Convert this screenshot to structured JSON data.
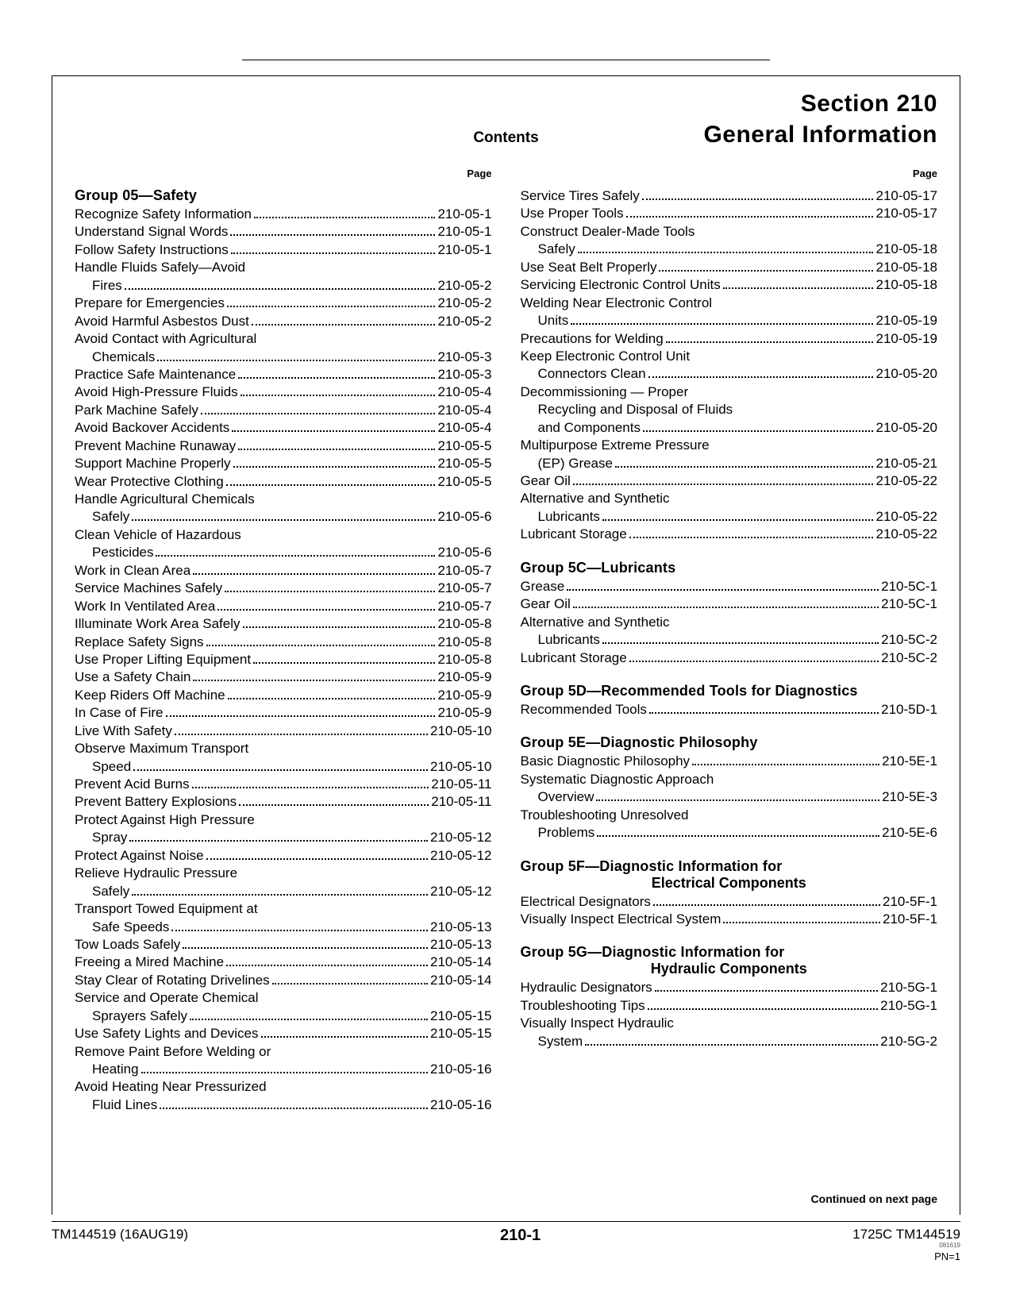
{
  "header": {
    "section_line1": "Section 210",
    "section_line2": "General Information",
    "contents_label": "Contents",
    "page_label": "Page"
  },
  "continued": "Continued on next page",
  "footer": {
    "left": "TM144519 (16AUG19)",
    "center": "210-1",
    "right_main": "1725C TM144519",
    "right_small": "081619",
    "pn": "PN=1"
  },
  "left_column": {
    "groups": [
      {
        "title": "Group 05—Safety",
        "entries": [
          {
            "t": "Recognize Safety Information",
            "p": "210-05-1"
          },
          {
            "t": "Understand Signal Words",
            "p": "210-05-1"
          },
          {
            "t": "Follow Safety Instructions",
            "p": "210-05-1"
          },
          {
            "t": "Handle Fluids Safely—Avoid",
            "cont": "Fires",
            "p": "210-05-2"
          },
          {
            "t": "Prepare for Emergencies",
            "p": "210-05-2"
          },
          {
            "t": "Avoid Harmful Asbestos Dust",
            "p": "210-05-2"
          },
          {
            "t": "Avoid Contact with Agricultural",
            "cont": "Chemicals",
            "p": "210-05-3"
          },
          {
            "t": "Practice Safe Maintenance",
            "p": "210-05-3"
          },
          {
            "t": "Avoid High-Pressure Fluids",
            "p": "210-05-4"
          },
          {
            "t": "Park Machine Safely",
            "p": "210-05-4"
          },
          {
            "t": "Avoid Backover Accidents",
            "p": "210-05-4"
          },
          {
            "t": "Prevent Machine Runaway",
            "p": "210-05-5"
          },
          {
            "t": "Support Machine Properly",
            "p": "210-05-5"
          },
          {
            "t": "Wear Protective Clothing",
            "p": "210-05-5"
          },
          {
            "t": "Handle Agricultural Chemicals",
            "cont": "Safely",
            "p": "210-05-6"
          },
          {
            "t": "Clean Vehicle of Hazardous",
            "cont": "Pesticides",
            "p": "210-05-6"
          },
          {
            "t": "Work in Clean Area",
            "p": "210-05-7"
          },
          {
            "t": "Service Machines Safely",
            "p": "210-05-7"
          },
          {
            "t": "Work In Ventilated Area",
            "p": "210-05-7"
          },
          {
            "t": "Illuminate Work Area Safely",
            "p": "210-05-8"
          },
          {
            "t": "Replace Safety Signs",
            "p": "210-05-8"
          },
          {
            "t": "Use Proper Lifting Equipment",
            "p": "210-05-8"
          },
          {
            "t": "Use a Safety Chain",
            "p": "210-05-9"
          },
          {
            "t": "Keep Riders Off Machine",
            "p": "210-05-9"
          },
          {
            "t": "In Case of Fire",
            "p": "210-05-9"
          },
          {
            "t": "Live With Safety",
            "p": "210-05-10"
          },
          {
            "t": "Observe Maximum Transport",
            "cont": "Speed",
            "p": "210-05-10"
          },
          {
            "t": "Prevent Acid Burns",
            "p": "210-05-11"
          },
          {
            "t": "Prevent Battery Explosions",
            "p": "210-05-11"
          },
          {
            "t": "Protect Against High Pressure",
            "cont": "Spray",
            "p": "210-05-12"
          },
          {
            "t": "Protect Against Noise",
            "p": "210-05-12"
          },
          {
            "t": "Relieve Hydraulic Pressure",
            "cont": "Safely",
            "p": "210-05-12"
          },
          {
            "t": "Transport Towed Equipment at",
            "cont": "Safe Speeds",
            "p": "210-05-13"
          },
          {
            "t": "Tow Loads Safely",
            "p": "210-05-13"
          },
          {
            "t": "Freeing a Mired Machine",
            "p": "210-05-14"
          },
          {
            "t": "Stay Clear of Rotating Drivelines",
            "p": "210-05-14"
          },
          {
            "t": "Service and Operate Chemical",
            "cont": "Sprayers Safely",
            "p": "210-05-15"
          },
          {
            "t": "Use Safety Lights and Devices",
            "p": "210-05-15"
          },
          {
            "t": "Remove Paint Before Welding or",
            "cont": "Heating",
            "p": "210-05-16"
          },
          {
            "t": "Avoid Heating Near Pressurized",
            "cont": "Fluid Lines",
            "p": "210-05-16"
          }
        ]
      }
    ]
  },
  "right_column": {
    "pre_entries": [
      {
        "t": "Service Tires Safely",
        "p": "210-05-17"
      },
      {
        "t": "Use Proper Tools",
        "p": "210-05-17"
      },
      {
        "t": "Construct Dealer-Made Tools",
        "cont": "Safely",
        "p": "210-05-18"
      },
      {
        "t": "Use Seat Belt Properly",
        "p": "210-05-18"
      },
      {
        "t": "Servicing Electronic Control Units",
        "p": "210-05-18"
      },
      {
        "t": "Welding Near Electronic Control",
        "cont": "Units",
        "p": "210-05-19"
      },
      {
        "t": "Precautions for Welding",
        "p": "210-05-19"
      },
      {
        "t": "Keep Electronic Control Unit",
        "cont": "Connectors Clean",
        "p": "210-05-20"
      },
      {
        "t": "Decommissioning — Proper",
        "cont": "Recycling and Disposal of Fluids",
        "cont2": "and Components",
        "p": "210-05-20"
      },
      {
        "t": "Multipurpose Extreme Pressure",
        "cont": "(EP) Grease",
        "p": "210-05-21"
      },
      {
        "t": "Gear Oil",
        "p": "210-05-22"
      },
      {
        "t": "Alternative and Synthetic",
        "cont": "Lubricants",
        "p": "210-05-22"
      },
      {
        "t": "Lubricant Storage",
        "p": "210-05-22"
      }
    ],
    "groups": [
      {
        "title": "Group 5C—Lubricants",
        "entries": [
          {
            "t": "Grease",
            "p": "210-5C-1"
          },
          {
            "t": "Gear Oil",
            "p": "210-5C-1"
          },
          {
            "t": "Alternative and Synthetic",
            "cont": "Lubricants",
            "p": "210-5C-2"
          },
          {
            "t": "Lubricant Storage",
            "p": "210-5C-2"
          }
        ]
      },
      {
        "title": "Group 5D—Recommended Tools for Diagnostics",
        "entries": [
          {
            "t": "Recommended Tools",
            "p": "210-5D-1"
          }
        ]
      },
      {
        "title": "Group 5E—Diagnostic Philosophy",
        "entries": [
          {
            "t": "Basic Diagnostic Philosophy",
            "p": "210-5E-1"
          },
          {
            "t": "Systematic Diagnostic Approach",
            "cont": "Overview",
            "p": "210-5E-3"
          },
          {
            "t": "Troubleshooting Unresolved",
            "cont": "Problems",
            "p": "210-5E-6"
          }
        ]
      },
      {
        "title": "Group 5F—Diagnostic Information for",
        "subline": "Electrical Components",
        "entries": [
          {
            "t": "Electrical Designators",
            "p": "210-5F-1"
          },
          {
            "t": "Visually Inspect Electrical System",
            "p": "210-5F-1"
          }
        ]
      },
      {
        "title": "Group 5G—Diagnostic Information for",
        "subline": "Hydraulic Components",
        "entries": [
          {
            "t": "Hydraulic Designators",
            "p": "210-5G-1"
          },
          {
            "t": "Troubleshooting Tips",
            "p": "210-5G-1"
          },
          {
            "t": "Visually Inspect Hydraulic",
            "cont": "System",
            "p": "210-5G-2"
          }
        ]
      }
    ]
  }
}
